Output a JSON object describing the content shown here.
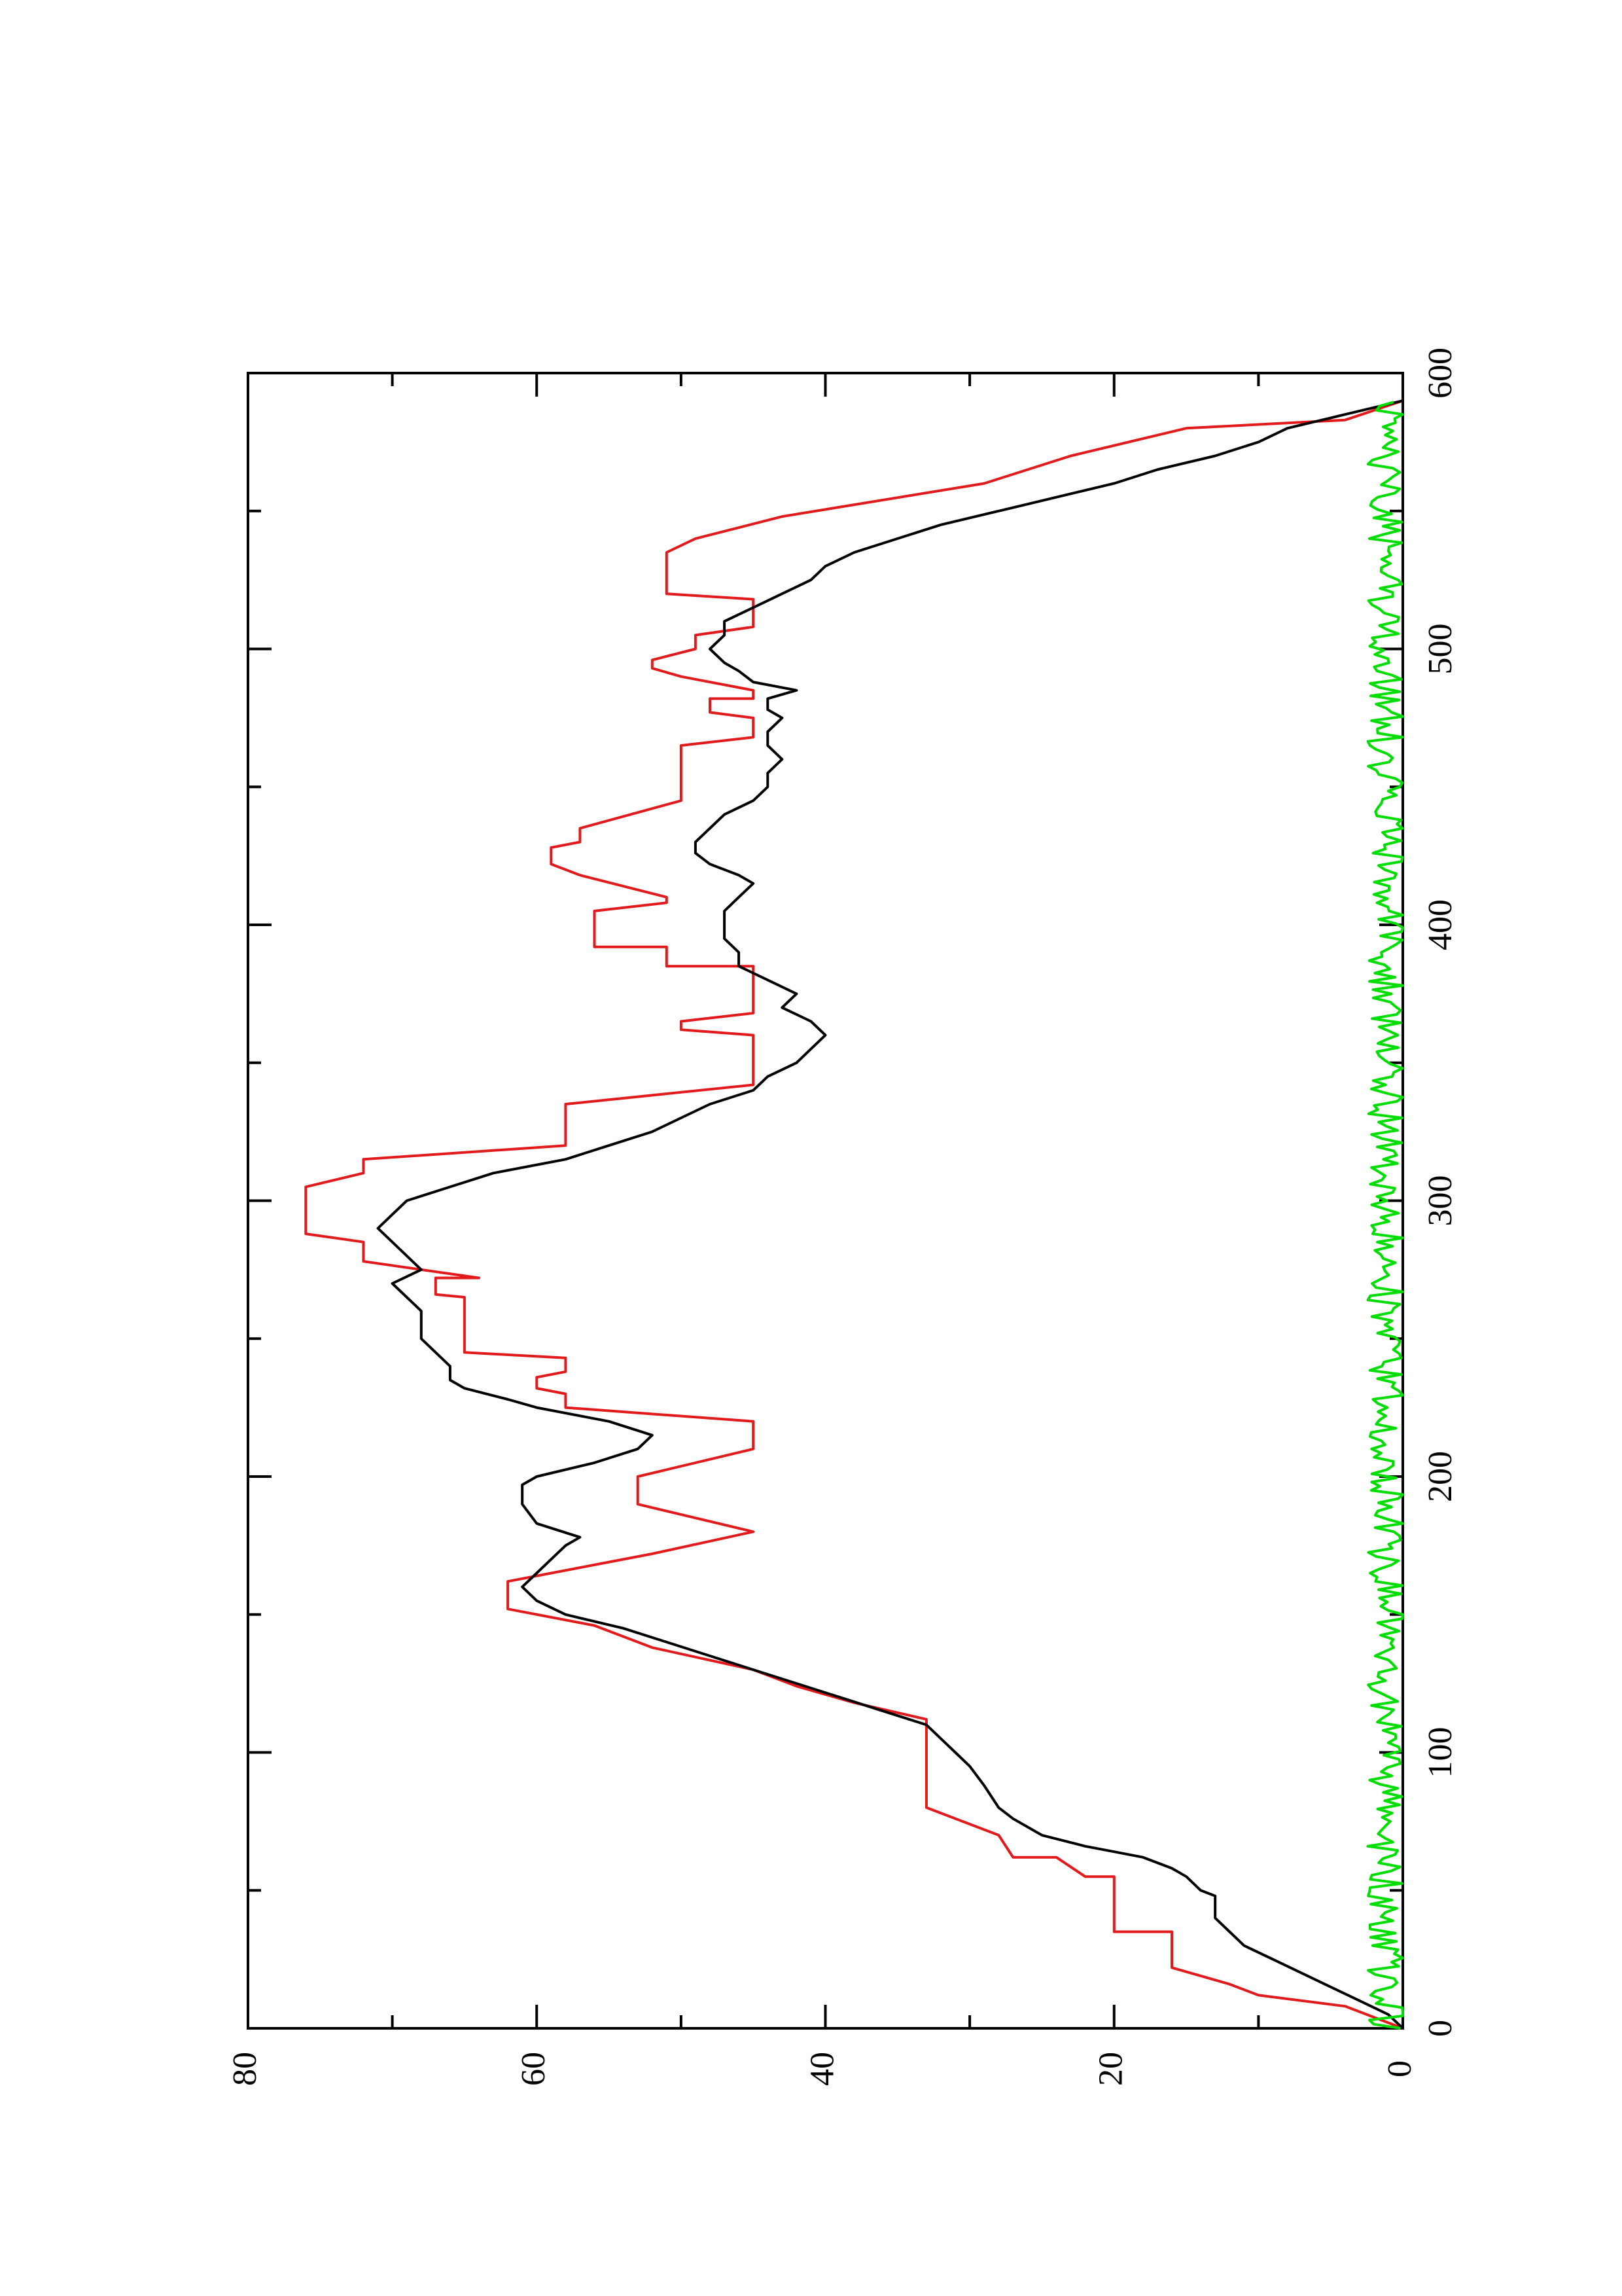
{
  "chart_data": {
    "type": "line",
    "orientation": "rotated-90-ccw",
    "title": "",
    "xlabel": "",
    "ylabel": "",
    "xlim": [
      0,
      600
    ],
    "ylim": [
      0,
      80
    ],
    "x_ticks": [
      0,
      100,
      200,
      300,
      400,
      500,
      600
    ],
    "y_ticks": [
      0,
      20,
      40,
      60,
      80
    ],
    "grid": false,
    "legend": "none",
    "series": [
      {
        "color": "#e31a1c",
        "style": "step",
        "points": [
          [
            0,
            0
          ],
          [
            8,
            4
          ],
          [
            12,
            10
          ],
          [
            16,
            12
          ],
          [
            22,
            16
          ],
          [
            35,
            16
          ],
          [
            35,
            20
          ],
          [
            48,
            20
          ],
          [
            48,
            20
          ],
          [
            55,
            20
          ],
          [
            55,
            22
          ],
          [
            62,
            24
          ],
          [
            62,
            27
          ],
          [
            70,
            28
          ],
          [
            80,
            33
          ],
          [
            112,
            33
          ],
          [
            118,
            38
          ],
          [
            124,
            42
          ],
          [
            130,
            45
          ],
          [
            138,
            52
          ],
          [
            146,
            56
          ],
          [
            152,
            62
          ],
          [
            162,
            62
          ],
          [
            168,
            56
          ],
          [
            172,
            52
          ],
          [
            180,
            45
          ],
          [
            190,
            53
          ],
          [
            200,
            53
          ],
          [
            210,
            45
          ],
          [
            220,
            45
          ],
          [
            225,
            58
          ],
          [
            230,
            58
          ],
          [
            232,
            60
          ],
          [
            236,
            60
          ],
          [
            238,
            58
          ],
          [
            243,
            58
          ],
          [
            245,
            65
          ],
          [
            265,
            65
          ],
          [
            266,
            67
          ],
          [
            272,
            67
          ],
          [
            272,
            64
          ],
          [
            278,
            72
          ],
          [
            285,
            72
          ],
          [
            288,
            76
          ],
          [
            305,
            76
          ],
          [
            310,
            72
          ],
          [
            315,
            72
          ],
          [
            320,
            58
          ],
          [
            335,
            58
          ],
          [
            342,
            45
          ],
          [
            360,
            45
          ],
          [
            362,
            50
          ],
          [
            365,
            50
          ],
          [
            368,
            45
          ],
          [
            385,
            45
          ],
          [
            385,
            51
          ],
          [
            392,
            51
          ],
          [
            392,
            56
          ],
          [
            405,
            56
          ],
          [
            408,
            51
          ],
          [
            410,
            51
          ],
          [
            418,
            57
          ],
          [
            422,
            59
          ],
          [
            428,
            59
          ],
          [
            430,
            57
          ],
          [
            435,
            57
          ],
          [
            445,
            50
          ],
          [
            465,
            50
          ],
          [
            468,
            45
          ],
          [
            475,
            45
          ],
          [
            477,
            48
          ],
          [
            482,
            48
          ],
          [
            482,
            45
          ],
          [
            485,
            45
          ],
          [
            490,
            50
          ],
          [
            493,
            52
          ],
          [
            496,
            52
          ],
          [
            500,
            49
          ],
          [
            505,
            49
          ],
          [
            508,
            45
          ],
          [
            518,
            45
          ],
          [
            520,
            51
          ],
          [
            535,
            51
          ],
          [
            540,
            49
          ],
          [
            548,
            43
          ],
          [
            560,
            29
          ],
          [
            570,
            23
          ],
          [
            580,
            15
          ],
          [
            583,
            4
          ],
          [
            590,
            0
          ]
        ]
      },
      {
        "color": "#000000",
        "style": "line",
        "points": [
          [
            0,
            0
          ],
          [
            5,
            1
          ],
          [
            10,
            3
          ],
          [
            15,
            5
          ],
          [
            20,
            7
          ],
          [
            25,
            9
          ],
          [
            30,
            11
          ],
          [
            35,
            12
          ],
          [
            40,
            13
          ],
          [
            45,
            13
          ],
          [
            48,
            13
          ],
          [
            50,
            14
          ],
          [
            55,
            15
          ],
          [
            58,
            16
          ],
          [
            62,
            18
          ],
          [
            64,
            20
          ],
          [
            66,
            22
          ],
          [
            70,
            25
          ],
          [
            76,
            27
          ],
          [
            80,
            28
          ],
          [
            88,
            29
          ],
          [
            95,
            30
          ],
          [
            100,
            31
          ],
          [
            105,
            32
          ],
          [
            110,
            33
          ],
          [
            115,
            36
          ],
          [
            120,
            39
          ],
          [
            125,
            42
          ],
          [
            130,
            45
          ],
          [
            135,
            48
          ],
          [
            140,
            51
          ],
          [
            145,
            54
          ],
          [
            150,
            58
          ],
          [
            155,
            60
          ],
          [
            160,
            61
          ],
          [
            165,
            60
          ],
          [
            170,
            59
          ],
          [
            175,
            58
          ],
          [
            178,
            57
          ],
          [
            183,
            60
          ],
          [
            190,
            61
          ],
          [
            197,
            61
          ],
          [
            200,
            60
          ],
          [
            205,
            56
          ],
          [
            210,
            53
          ],
          [
            215,
            52
          ],
          [
            220,
            55
          ],
          [
            225,
            60
          ],
          [
            228,
            62
          ],
          [
            232,
            65
          ],
          [
            235,
            66
          ],
          [
            240,
            66
          ],
          [
            245,
            67
          ],
          [
            250,
            68
          ],
          [
            255,
            68
          ],
          [
            260,
            68
          ],
          [
            265,
            69
          ],
          [
            270,
            70
          ],
          [
            275,
            68
          ],
          [
            280,
            69
          ],
          [
            285,
            70
          ],
          [
            290,
            71
          ],
          [
            295,
            70
          ],
          [
            300,
            69
          ],
          [
            305,
            66
          ],
          [
            310,
            63
          ],
          [
            315,
            58
          ],
          [
            320,
            55
          ],
          [
            325,
            52
          ],
          [
            330,
            50
          ],
          [
            335,
            48
          ],
          [
            340,
            45
          ],
          [
            345,
            44
          ],
          [
            350,
            42
          ],
          [
            355,
            41
          ],
          [
            360,
            40
          ],
          [
            365,
            41
          ],
          [
            370,
            43
          ],
          [
            375,
            42
          ],
          [
            380,
            44
          ],
          [
            385,
            46
          ],
          [
            390,
            46
          ],
          [
            395,
            47
          ],
          [
            400,
            47
          ],
          [
            405,
            47
          ],
          [
            410,
            46
          ],
          [
            415,
            45
          ],
          [
            418,
            46
          ],
          [
            422,
            48
          ],
          [
            426,
            49
          ],
          [
            430,
            49
          ],
          [
            435,
            48
          ],
          [
            440,
            47
          ],
          [
            445,
            45
          ],
          [
            450,
            44
          ],
          [
            455,
            44
          ],
          [
            460,
            43
          ],
          [
            465,
            44
          ],
          [
            470,
            44
          ],
          [
            475,
            43
          ],
          [
            478,
            44
          ],
          [
            482,
            44
          ],
          [
            485,
            42
          ],
          [
            488,
            45
          ],
          [
            492,
            46
          ],
          [
            495,
            47
          ],
          [
            500,
            48
          ],
          [
            505,
            47
          ],
          [
            510,
            47
          ],
          [
            515,
            45
          ],
          [
            520,
            43
          ],
          [
            525,
            41
          ],
          [
            530,
            40
          ],
          [
            535,
            38
          ],
          [
            540,
            35
          ],
          [
            545,
            32
          ],
          [
            550,
            28
          ],
          [
            555,
            24
          ],
          [
            560,
            20
          ],
          [
            565,
            17
          ],
          [
            570,
            13
          ],
          [
            575,
            10
          ],
          [
            580,
            8
          ],
          [
            585,
            4
          ],
          [
            590,
            0
          ]
        ]
      },
      {
        "color": "#00dd00",
        "style": "noisy-line",
        "amplitude": 1.8,
        "baseline": 0.8,
        "x_range": [
          0,
          590
        ]
      }
    ]
  }
}
